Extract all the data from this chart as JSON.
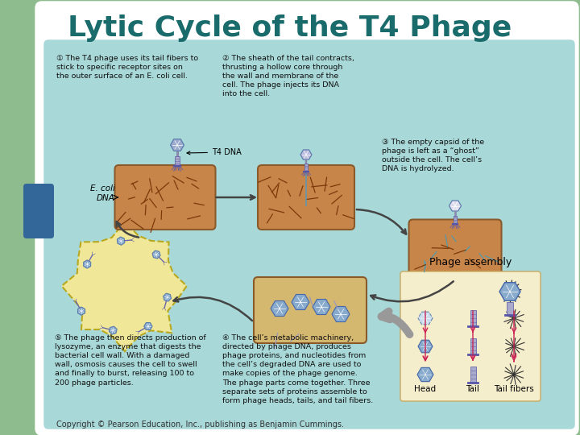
{
  "title": "Lytic Cycle of the T4 Phage",
  "title_color": "#1a6b6b",
  "title_fontsize": 26,
  "background_outer": "#8fbc8f",
  "background_main": "#a8d8d8",
  "white_box_color": "#ffffff",
  "copyright": "Copyright © Pearson Education, Inc., publishing as Benjamin Cummings.",
  "copyright_fontsize": 7,
  "copyright_color": "#333333",
  "left_tab_color": "#336699",
  "step1_text": "① The T4 phage uses its tail fibers to\nstick to specific receptor sites on\nthe outer surface of an E. coli cell.",
  "step2_text": "② The sheath of the tail contracts,\nthrusting a hollow core through\nthe wall and membrane of the\ncell. The phage injects its DNA\ninto the cell.",
  "step3_text": "③ The empty capsid of the\nphage is left as a “ghost”\noutside the cell. The cell’s\nDNA is hydrolyzed.",
  "step4_text": "④ The cell’s metabolic machinery,\ndirected by phage DNA, produces\nphage proteins, and nucleotides from\nthe cell’s degraded DNA are used to\nmake copies of the phage genome.\nThe phage parts come together. Three\nseparate sets of proteins assemble to\nform phage heads, tails, and tail fibers.",
  "step5_text": "⑤ The phage then directs production of\nlysozyme, an enzyme that digests the\nbacterial cell wall. With a damaged\nwall, osmosis causes the cell to swell\nand finally to burst, releasing 100 to\n200 phage particles.",
  "label_t4dna": "T4 DNA",
  "label_ecoli": "E. coli\nDNA",
  "label_phage_assembly": "Phage assembly",
  "label_head": "Head",
  "label_tail": "Tail",
  "label_tail_fibers": "Tail fibers",
  "text_color": "#111111",
  "bold_text_color": "#222222",
  "step_fontsize": 6.8,
  "cell_fill_brown": "#c8854a",
  "cell_fill_tan": "#d4b870",
  "cell_border": "#8b5a2b",
  "cell_fill_step3": "#c8854a",
  "dna_color_brown": "#7a3a0a",
  "dna_color_blue": "#5599aa",
  "phage_head_color": "#88aacc",
  "phage_outline": "#5577aa",
  "assembly_box_color": "#f5eecc",
  "assembly_box_border": "#c8aa60",
  "burst_cell_color": "#f0e898",
  "burst_border": "#b8a820",
  "gray_arrow_color": "#888888",
  "pink_arrow_color": "#cc2255"
}
